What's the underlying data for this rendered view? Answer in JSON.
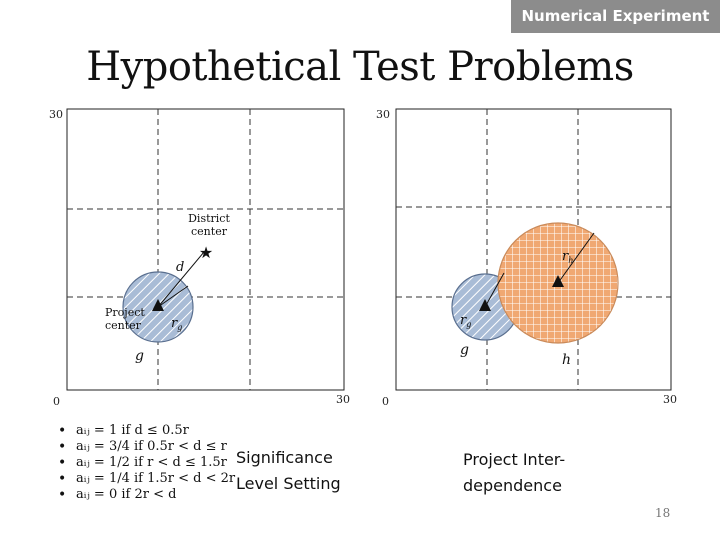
{
  "header": {
    "tag": "Numerical Experiment",
    "title": "Hypothetical Test Problems"
  },
  "left_diagram": {
    "axis_min": "0",
    "axis_max_x": "30",
    "axis_max_y": "30",
    "district_label_line1": "District",
    "district_label_line2": "center",
    "project_label_line1": "Project",
    "project_label_line2": "center",
    "d_label": "d",
    "r_label": "r",
    "r_sub": "g",
    "g_label": "g",
    "circle_fill": "#a9bcd6",
    "circle_stroke": "#5a6f8f"
  },
  "right_diagram": {
    "axis_min": "0",
    "axis_max_x": "30",
    "axis_max_y": "30",
    "rh_label": "r",
    "rh_sub": "h",
    "rg_label": "r",
    "rg_sub": "g",
    "g_label": "g",
    "h_label": "h",
    "small_fill": "#a9bcd6",
    "big_fill": "#f0a872",
    "big_stroke": "#c98a5a"
  },
  "bullets": [
    "aᵢⱼ = 1 if d ≤ 0.5r",
    "aᵢⱼ = 3/4 if 0.5r < d ≤ r",
    "aᵢⱼ = 1/2 if r < d ≤ 1.5r",
    "aᵢⱼ = 1/4 if 1.5r < d < 2r",
    "aᵢⱼ = 0 if 2r < d"
  ],
  "captions": {
    "significance_line1": "Significance",
    "significance_line2": "Level Setting",
    "interdep_line1": "Project Inter-",
    "interdep_line2": "dependence"
  },
  "page_number": "18"
}
